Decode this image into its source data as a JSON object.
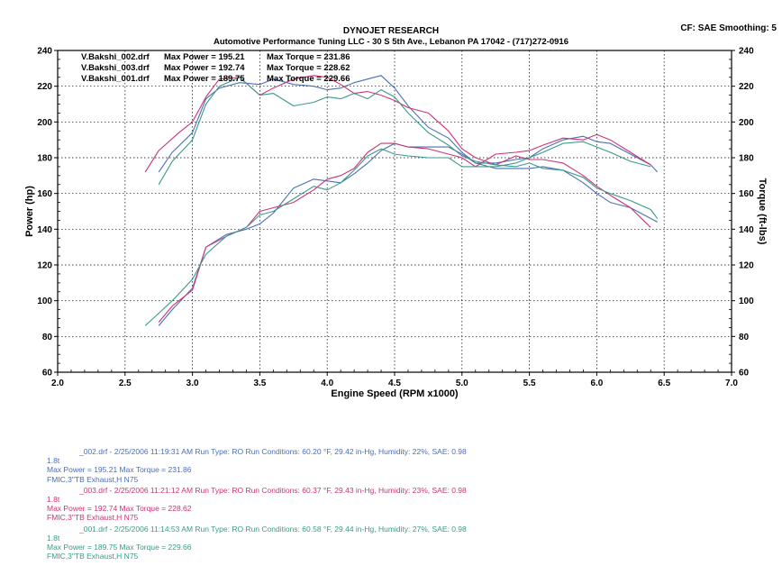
{
  "header": {
    "title": "DYNOJET RESEARCH",
    "subtitle": "Automotive Performance Tuning LLC - 30 S 5th Ave., Lebanon PA 17042 - (717)272-0916",
    "cf_info": "CF: SAE  Smoothing: 5"
  },
  "legend": [
    {
      "file": "V.Bakshi_002.drf",
      "power_label": "Max Power = 195.21",
      "torque_label": "Max Torque = 231.86"
    },
    {
      "file": "V.Bakshi_003.drf",
      "power_label": "Max Power = 192.74",
      "torque_label": "Max Torque = 228.62"
    },
    {
      "file": "V.Bakshi_001.drf",
      "power_label": "Max Power = 189.75",
      "torque_label": "Max Torque = 229.66"
    }
  ],
  "runs": [
    {
      "header": "_002.drf - 2/25/2006 11:19:31 AM  Run Type: RO  Run Conditions: 60.20 °F, 29.42 in-Hg,  Humidity:  22%, SAE: 0.98",
      "name": "1.8t",
      "max": "Max Power = 195.21  Max Torque = 231.86",
      "config": "FMIC,3\"TB Exhaust,H N75",
      "color": "#4a6fb5"
    },
    {
      "header": "_003.drf - 2/25/2006 11:21:12 AM  Run Type: RO  Run Conditions: 60.37 °F, 29.43 in-Hg,  Humidity:  23%, SAE: 0.98",
      "name": "1.8t",
      "max": "Max Power = 192.74  Max Torque = 228.62",
      "config": "FMIC,3\"TB Exhaust,H N75",
      "color": "#cc3377"
    },
    {
      "header": "_001.drf - 2/25/2006 11:14:53 AM  Run Type: RO  Run Conditions: 60.58 °F, 29.44 in-Hg,  Humidity:  27%, SAE: 0.98",
      "name": "1.8t",
      "max": "Max Power = 189.75  Max Torque = 229.66",
      "config": "FMIC,3\"TB Exhaust,H N75",
      "color": "#3a9a8a"
    }
  ],
  "chart_data": {
    "type": "line",
    "title": "DYNOJET RESEARCH",
    "xlabel": "Engine Speed (RPM x1000)",
    "ylabel": "Power (hp)",
    "y2label": "Torque (ft-lbs)",
    "xlim": [
      2.0,
      7.0
    ],
    "ylim": [
      60,
      240
    ],
    "y2lim": [
      60,
      240
    ],
    "x_ticks": [
      "2.0",
      "2.5",
      "3.0",
      "3.5",
      "4.0",
      "4.5",
      "5.0",
      "5.5",
      "6.0",
      "6.5",
      "7.0"
    ],
    "y_ticks": [
      "60",
      "80",
      "100",
      "120",
      "140",
      "160",
      "180",
      "200",
      "220",
      "240"
    ],
    "grid": true,
    "series": [
      {
        "name": "V.Bakshi_002.drf",
        "measure": "power",
        "color": "#4a6fb5",
        "x": [
          2.75,
          2.85,
          3.0,
          3.1,
          3.25,
          3.4,
          3.5,
          3.6,
          3.75,
          3.9,
          4.0,
          4.1,
          4.2,
          4.3,
          4.4,
          4.5,
          4.6,
          4.75,
          4.9,
          5.0,
          5.1,
          5.25,
          5.4,
          5.5,
          5.6,
          5.75,
          5.9,
          6.0,
          6.1,
          6.25,
          6.4,
          6.45
        ],
        "y": [
          86,
          95,
          107,
          130,
          137,
          140,
          143,
          149,
          163,
          168,
          167,
          166,
          171,
          177,
          184,
          188,
          186,
          186,
          186,
          182,
          177,
          177,
          179,
          180,
          185,
          190,
          192,
          189,
          188,
          182,
          176,
          172
        ]
      },
      {
        "name": "V.Bakshi_002.drf",
        "measure": "torque",
        "color": "#4a6fb5",
        "x": [
          2.75,
          2.85,
          3.0,
          3.1,
          3.2,
          3.35,
          3.5,
          3.6,
          3.75,
          3.9,
          4.0,
          4.1,
          4.2,
          4.3,
          4.4,
          4.5,
          4.6,
          4.75,
          4.9,
          5.0,
          5.1,
          5.25,
          5.4,
          5.5,
          5.6,
          5.75,
          5.9,
          6.0,
          6.1,
          6.25,
          6.4,
          6.45
        ],
        "y": [
          172,
          183,
          194,
          213,
          219,
          222,
          221,
          224,
          221,
          220,
          218,
          219,
          222,
          224,
          226,
          219,
          209,
          197,
          191,
          183,
          177,
          174,
          174,
          174,
          175,
          173,
          166,
          160,
          155,
          152,
          146,
          144
        ]
      },
      {
        "name": "V.Bakshi_003.drf",
        "measure": "power",
        "color": "#cc3377",
        "x": [
          2.75,
          2.85,
          3.0,
          3.1,
          3.25,
          3.4,
          3.5,
          3.6,
          3.75,
          3.9,
          4.0,
          4.1,
          4.2,
          4.3,
          4.4,
          4.5,
          4.6,
          4.75,
          4.9,
          5.0,
          5.1,
          5.25,
          5.4,
          5.5,
          5.6,
          5.75,
          5.9,
          6.0,
          6.1,
          6.25,
          6.4
        ],
        "y": [
          88,
          97,
          106,
          130,
          136,
          141,
          150,
          152,
          155,
          162,
          168,
          170,
          174,
          183,
          188,
          188,
          186,
          185,
          182,
          180,
          175,
          182,
          183,
          184,
          187,
          191,
          190,
          193,
          190,
          183,
          176
        ]
      },
      {
        "name": "V.Bakshi_003.drf",
        "measure": "torque",
        "color": "#cc3377",
        "x": [
          2.65,
          2.75,
          2.9,
          3.0,
          3.1,
          3.2,
          3.35,
          3.5,
          3.6,
          3.75,
          3.9,
          4.0,
          4.1,
          4.2,
          4.3,
          4.4,
          4.5,
          4.6,
          4.75,
          4.9,
          5.0,
          5.1,
          5.25,
          5.4,
          5.5,
          5.6,
          5.75,
          5.9,
          6.0,
          6.1,
          6.25,
          6.4
        ],
        "y": [
          172,
          184,
          194,
          200,
          214,
          224,
          225,
          215,
          219,
          224,
          226,
          225,
          221,
          216,
          217,
          215,
          212,
          208,
          205,
          195,
          185,
          180,
          176,
          181,
          179,
          179,
          177,
          170,
          164,
          159,
          152,
          141
        ]
      },
      {
        "name": "V.Bakshi_001.drf",
        "measure": "power",
        "color": "#3a9a8a",
        "x": [
          2.65,
          2.75,
          2.85,
          3.0,
          3.1,
          3.25,
          3.4,
          3.5,
          3.6,
          3.75,
          3.9,
          4.0,
          4.1,
          4.2,
          4.3,
          4.4,
          4.5,
          4.6,
          4.75,
          4.9,
          5.0,
          5.1,
          5.25,
          5.4,
          5.5,
          5.6,
          5.75,
          5.9,
          6.0,
          6.1,
          6.25,
          6.4
        ],
        "y": [
          86,
          93,
          100,
          112,
          126,
          136,
          141,
          148,
          150,
          157,
          164,
          162,
          166,
          173,
          181,
          185,
          182,
          181,
          180,
          180,
          175,
          175,
          175,
          177,
          180,
          183,
          188,
          189,
          186,
          183,
          178,
          175
        ]
      },
      {
        "name": "V.Bakshi_001.drf",
        "measure": "torque",
        "color": "#3a9a8a",
        "x": [
          2.75,
          2.85,
          3.0,
          3.1,
          3.2,
          3.35,
          3.5,
          3.6,
          3.75,
          3.9,
          4.0,
          4.1,
          4.2,
          4.3,
          4.4,
          4.5,
          4.6,
          4.75,
          4.9,
          5.0,
          5.1,
          5.25,
          5.4,
          5.5,
          5.6,
          5.75,
          5.9,
          6.0,
          6.1,
          6.25,
          6.4,
          6.45
        ],
        "y": [
          165,
          178,
          190,
          210,
          220,
          225,
          215,
          216,
          209,
          211,
          214,
          213,
          216,
          213,
          218,
          214,
          205,
          194,
          187,
          181,
          178,
          176,
          175,
          177,
          174,
          173,
          169,
          163,
          160,
          156,
          151,
          146
        ]
      }
    ]
  }
}
